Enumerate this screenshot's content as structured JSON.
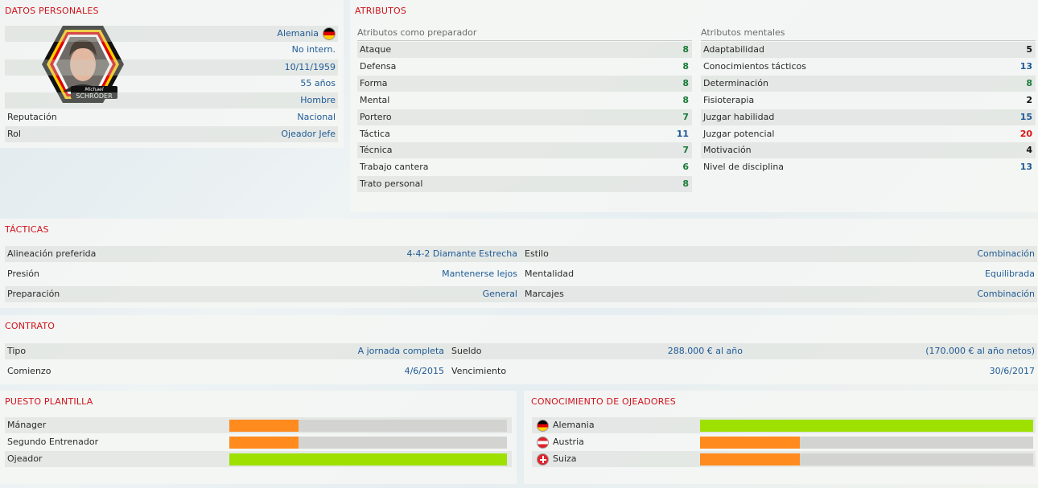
{
  "personal": {
    "title": "DATOS PERSONALES",
    "nationality": "Alemania",
    "intl": "No intern.",
    "dob": "10/11/1959",
    "age": "55 años",
    "gender": "Hombre",
    "reputation_label": "Reputación",
    "reputation": "Nacional",
    "role_label": "Rol",
    "role": "Ojeador Jefe",
    "name_first": "Michael",
    "name_last": "SCHRÖDER",
    "colors": {
      "flag_black": "#000000",
      "flag_red": "#dd0000",
      "flag_gold": "#ffce00"
    }
  },
  "attributes": {
    "title": "ATRIBUTOS",
    "coaching_head": "Atributos como preparador",
    "mental_head": "Atributos mentales",
    "coaching": [
      {
        "label": "Ataque",
        "value": "8",
        "color": "green"
      },
      {
        "label": "Defensa",
        "value": "8",
        "color": "green"
      },
      {
        "label": "Forma",
        "value": "8",
        "color": "green"
      },
      {
        "label": "Mental",
        "value": "8",
        "color": "green"
      },
      {
        "label": "Portero",
        "value": "7",
        "color": "green"
      },
      {
        "label": "Táctica",
        "value": "11",
        "color": "blue"
      },
      {
        "label": "Técnica",
        "value": "7",
        "color": "green"
      },
      {
        "label": "Trabajo cantera",
        "value": "6",
        "color": "green"
      },
      {
        "label": "Trato personal",
        "value": "8",
        "color": "green"
      }
    ],
    "mental": [
      {
        "label": "Adaptabilidad",
        "value": "5",
        "color": "dark"
      },
      {
        "label": "Conocimientos tácticos",
        "value": "13",
        "color": "blue"
      },
      {
        "label": "Determinación",
        "value": "8",
        "color": "green"
      },
      {
        "label": "Fisioterapia",
        "value": "2",
        "color": "dark"
      },
      {
        "label": "Juzgar habilidad",
        "value": "15",
        "color": "blue"
      },
      {
        "label": "Juzgar potencial",
        "value": "20",
        "color": "red"
      },
      {
        "label": "Motivación",
        "value": "4",
        "color": "dark"
      },
      {
        "label": "Nivel de disciplina",
        "value": "13",
        "color": "blue"
      }
    ]
  },
  "tactics": {
    "title": "TÁCTICAS",
    "rows": [
      {
        "l1": "Alineación preferida",
        "v1": "4-4-2 Diamante Estrecha",
        "l2": "Estilo",
        "v2": "Combinación"
      },
      {
        "l1": "Presión",
        "v1": "Mantenerse lejos",
        "l2": "Mentalidad",
        "v2": "Equilibrada"
      },
      {
        "l1": "Preparación",
        "v1": "General",
        "l2": "Marcajes",
        "v2": "Combinación"
      }
    ]
  },
  "contract": {
    "title": "CONTRATO",
    "type_label": "Tipo",
    "type": "A jornada completa",
    "salary_label": "Sueldo",
    "salary": "288.000 € al año",
    "salary_net": "(170.000 € al año netos)",
    "start_label": "Comienzo",
    "start": "4/6/2015",
    "end_label": "Vencimiento",
    "end": "30/6/2017"
  },
  "squad": {
    "title": "PUESTO PLANTILLA",
    "items": [
      {
        "label": "Mánager",
        "level": 0.25,
        "color": "#ff8a1e"
      },
      {
        "label": "Segundo Entrenador",
        "level": 0.25,
        "color": "#ff8a1e"
      },
      {
        "label": "Ojeador",
        "level": 1.0,
        "color": "#9ee000"
      }
    ]
  },
  "knowledge": {
    "title": "CONOCIMIENTO DE OJEADORES",
    "items": [
      {
        "label": "Alemania",
        "flag": "germany-flag-icon",
        "level": 1.0,
        "color": "#9ee000"
      },
      {
        "label": "Austria",
        "flag": "austria-flag-icon",
        "level": 0.3,
        "color": "#ff8a1e"
      },
      {
        "label": "Suiza",
        "flag": "switzerland-flag-icon",
        "level": 0.3,
        "color": "#ff8a1e"
      }
    ]
  }
}
